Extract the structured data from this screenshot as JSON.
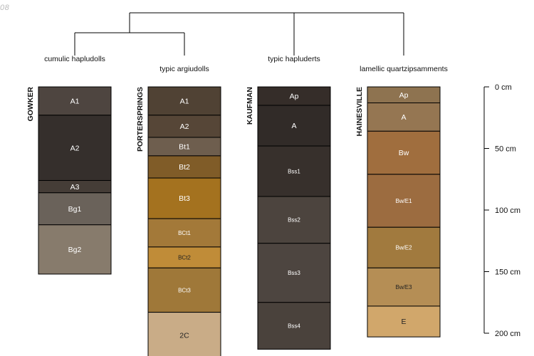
{
  "corner_text": "08",
  "dendrogram": {
    "groups": [
      {
        "label": "cumulic hapludolls"
      },
      {
        "label": "typic argiudolls"
      },
      {
        "label": "typic hapluderts"
      },
      {
        "label": "lamellic quartzipsamments"
      }
    ]
  },
  "profiles": [
    {
      "name": "GOWKER",
      "horizons": [
        {
          "name": "A1",
          "top": 0,
          "bottom": 23,
          "color": "#4e4540",
          "text_color": "#ffffff"
        },
        {
          "name": "A2",
          "top": 23,
          "bottom": 76,
          "color": "#352f2c",
          "text_color": "#ffffff"
        },
        {
          "name": "A3",
          "top": 76,
          "bottom": 86,
          "color": "#453d37",
          "text_color": "#ffffff"
        },
        {
          "name": "Bg1",
          "top": 86,
          "bottom": 112,
          "color": "#6a625a",
          "text_color": "#ffffff"
        },
        {
          "name": "Bg2",
          "top": 112,
          "bottom": 152,
          "color": "#877b6c",
          "text_color": "#ffffff"
        }
      ]
    },
    {
      "name": "PORTERSPRINGS",
      "horizons": [
        {
          "name": "A1",
          "top": 0,
          "bottom": 23,
          "color": "#504234",
          "text_color": "#ffffff"
        },
        {
          "name": "A2",
          "top": 23,
          "bottom": 41,
          "color": "#564637",
          "text_color": "#ffffff"
        },
        {
          "name": "Bt1",
          "top": 41,
          "bottom": 56,
          "color": "#6e5e4e",
          "text_color": "#ffffff"
        },
        {
          "name": "Bt2",
          "top": 56,
          "bottom": 74,
          "color": "#805c28",
          "text_color": "#ffffff"
        },
        {
          "name": "Bt3",
          "top": 74,
          "bottom": 107,
          "color": "#a4721f",
          "text_color": "#ffffff"
        },
        {
          "name": "BCt1",
          "top": 107,
          "bottom": 130,
          "color": "#a37939",
          "text_color": "#ffffff"
        },
        {
          "name": "BCt2",
          "top": 130,
          "bottom": 147,
          "color": "#c08c38",
          "text_color": "#222222"
        },
        {
          "name": "BCt3",
          "top": 147,
          "bottom": 183,
          "color": "#9f7839",
          "text_color": "#ffffff"
        },
        {
          "name": "2C",
          "top": 183,
          "bottom": 220,
          "color": "#c9ac87",
          "text_color": "#222222"
        }
      ]
    },
    {
      "name": "KAUFMAN",
      "horizons": [
        {
          "name": "Ap",
          "top": 0,
          "bottom": 15,
          "color": "#352d29",
          "text_color": "#ffffff"
        },
        {
          "name": "A",
          "top": 15,
          "bottom": 48,
          "color": "#312b28",
          "text_color": "#ffffff"
        },
        {
          "name": "Bss1",
          "top": 48,
          "bottom": 89,
          "color": "#37302c",
          "text_color": "#ffffff"
        },
        {
          "name": "Bss2",
          "top": 89,
          "bottom": 127,
          "color": "#4c443e",
          "text_color": "#ffffff"
        },
        {
          "name": "Bss3",
          "top": 127,
          "bottom": 175,
          "color": "#4d4540",
          "text_color": "#ffffff"
        },
        {
          "name": "Bss4",
          "top": 175,
          "bottom": 213,
          "color": "#4a423c",
          "text_color": "#ffffff"
        }
      ]
    },
    {
      "name": "HAINESVILLE",
      "horizons": [
        {
          "name": "Ap",
          "top": 0,
          "bottom": 13,
          "color": "#8e7350",
          "text_color": "#ffffff"
        },
        {
          "name": "A",
          "top": 13,
          "bottom": 36,
          "color": "#957652",
          "text_color": "#ffffff"
        },
        {
          "name": "Bw",
          "top": 36,
          "bottom": 71,
          "color": "#a06e3e",
          "text_color": "#ffffff"
        },
        {
          "name": "Bw/E1",
          "top": 71,
          "bottom": 114,
          "color": "#9c6c40",
          "text_color": "#ffffff"
        },
        {
          "name": "Bw/E2",
          "top": 114,
          "bottom": 147,
          "color": "#a17a3e",
          "text_color": "#ffffff"
        },
        {
          "name": "Bw/E3",
          "top": 147,
          "bottom": 178,
          "color": "#b58e55",
          "text_color": "#222222"
        },
        {
          "name": "E",
          "top": 178,
          "bottom": 203,
          "color": "#d1a76b",
          "text_color": "#222222"
        }
      ]
    }
  ],
  "depth_axis": {
    "ticks": [
      {
        "depth": 0,
        "label": "0 cm"
      },
      {
        "depth": 50,
        "label": "50 cm"
      },
      {
        "depth": 100,
        "label": "100 cm"
      },
      {
        "depth": 150,
        "label": "150 cm"
      },
      {
        "depth": 200,
        "label": "200 cm"
      }
    ]
  }
}
